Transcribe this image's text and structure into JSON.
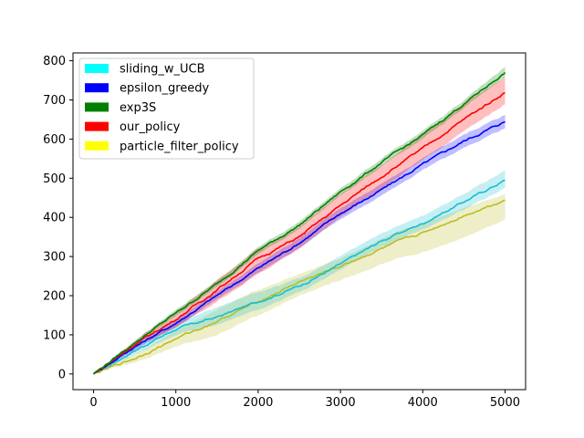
{
  "chart_data": {
    "type": "line",
    "title": "",
    "xlabel": "",
    "ylabel": "",
    "xlim": [
      -250,
      5250
    ],
    "ylim": [
      -40,
      820
    ],
    "xticks": [
      0,
      1000,
      2000,
      3000,
      4000,
      5000
    ],
    "yticks": [
      0,
      100,
      200,
      300,
      400,
      500,
      600,
      700,
      800
    ],
    "grid": false,
    "legend_position": "top-left",
    "x": [
      0,
      500,
      1000,
      1500,
      2000,
      2500,
      3000,
      3500,
      4000,
      4500,
      5000
    ],
    "series": [
      {
        "name": "sliding_w_UCB",
        "line_color": "#17becf",
        "legend_color": "#00ffff",
        "values": [
          0,
          60,
          115,
          145,
          185,
          225,
          280,
          340,
          385,
          440,
          495
        ],
        "band_lower": [
          0,
          50,
          100,
          125,
          165,
          210,
          265,
          325,
          370,
          420,
          475
        ],
        "band_upper": [
          0,
          70,
          130,
          170,
          210,
          245,
          300,
          360,
          405,
          460,
          520
        ]
      },
      {
        "name": "epsilon_greedy",
        "line_color": "#0000ff",
        "legend_color": "#0000ff",
        "values": [
          0,
          70,
          130,
          200,
          270,
          335,
          410,
          470,
          535,
          595,
          645
        ],
        "band_lower": [
          0,
          62,
          120,
          190,
          258,
          322,
          396,
          455,
          520,
          578,
          628
        ],
        "band_upper": [
          0,
          78,
          140,
          210,
          282,
          348,
          424,
          485,
          550,
          612,
          662
        ]
      },
      {
        "name": "exp3S",
        "line_color": "#008000",
        "legend_color": "#008000",
        "values": [
          0,
          80,
          155,
          230,
          315,
          380,
          465,
          540,
          610,
          690,
          770
        ],
        "band_lower": [
          0,
          74,
          147,
          222,
          306,
          371,
          456,
          530,
          600,
          680,
          760
        ],
        "band_upper": [
          0,
          86,
          163,
          238,
          324,
          389,
          474,
          550,
          620,
          700,
          785
        ]
      },
      {
        "name": "our_policy",
        "line_color": "#ff0000",
        "legend_color": "#ff0000",
        "values": [
          0,
          75,
          140,
          215,
          295,
          350,
          430,
          505,
          575,
          650,
          720
        ],
        "band_lower": [
          0,
          66,
          120,
          185,
          255,
          320,
          400,
          475,
          545,
          620,
          690
        ],
        "band_upper": [
          0,
          84,
          160,
          240,
          320,
          375,
          460,
          535,
          610,
          690,
          760
        ]
      },
      {
        "name": "particle_filter_policy",
        "line_color": "#bcbd22",
        "legend_color": "#ffff00",
        "values": [
          0,
          40,
          90,
          135,
          185,
          235,
          275,
          320,
          360,
          405,
          445
        ],
        "band_lower": [
          0,
          30,
          70,
          100,
          150,
          200,
          240,
          280,
          310,
          350,
          395
        ],
        "band_upper": [
          0,
          50,
          110,
          165,
          215,
          255,
          295,
          345,
          385,
          425,
          460
        ]
      }
    ]
  }
}
